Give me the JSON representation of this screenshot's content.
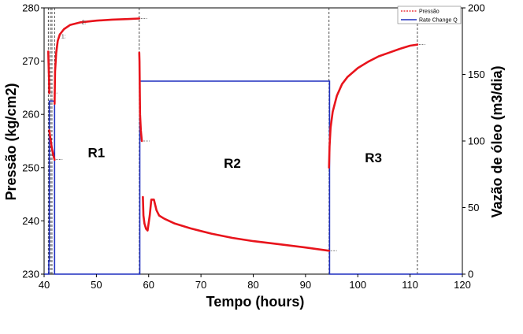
{
  "chart_data": {
    "type": "line",
    "xlabel": "Tempo (hours)",
    "ylabel_left": "Pressão (kg/cm2)",
    "ylabel_right": "Vazão de óleo (m3/dia)",
    "xlim": [
      40,
      120
    ],
    "ylim_left": [
      230,
      280
    ],
    "ylim_right": [
      0,
      200
    ],
    "x_ticks": [
      40,
      50,
      60,
      70,
      80,
      90,
      100,
      110,
      120
    ],
    "y_left_ticks": [
      230,
      240,
      250,
      260,
      270,
      280
    ],
    "y_right_ticks": [
      0,
      50,
      100,
      150,
      200
    ],
    "legend": {
      "placement": "top-right",
      "entries": [
        "Pressão",
        "Rate Change Q"
      ]
    },
    "colors": {
      "pressure": "#e8141c",
      "rate": "#1f2fbf",
      "guides": "#222222"
    },
    "series": [
      {
        "name": "Pressão",
        "axis": "left",
        "segments": [
          [
            [
              40.8,
              271.8
            ],
            [
              40.85,
              270
            ],
            [
              40.9,
              268
            ],
            [
              40.95,
              266.5
            ],
            [
              41.0,
              264
            ]
          ],
          [
            [
              41.0,
              257
            ],
            [
              41.2,
              255.5
            ],
            [
              41.5,
              253.5
            ],
            [
              41.8,
              252.2
            ],
            [
              42.0,
              251.5
            ]
          ],
          [
            [
              42.0,
              262
            ],
            [
              42.1,
              268
            ],
            [
              42.3,
              271.5
            ],
            [
              42.6,
              273.8
            ],
            [
              43.0,
              275
            ],
            [
              43.8,
              276
            ],
            [
              45,
              276.8
            ],
            [
              47,
              277.3
            ],
            [
              50,
              277.6
            ],
            [
              53,
              277.8
            ],
            [
              56,
              277.9
            ],
            [
              58.2,
              278
            ]
          ],
          [
            [
              58.2,
              271.6
            ],
            [
              58.25,
              270
            ],
            [
              58.3,
              264
            ],
            [
              58.35,
              260
            ],
            [
              58.5,
              257
            ],
            [
              58.7,
              255
            ]
          ],
          [
            [
              58.9,
              244.5
            ],
            [
              59.0,
              241
            ],
            [
              59.2,
              239.5
            ],
            [
              59.5,
              238.5
            ],
            [
              59.8,
              238.2
            ],
            [
              60.2,
              241
            ],
            [
              60.5,
              244
            ],
            [
              61.0,
              244
            ],
            [
              61.5,
              242
            ],
            [
              62,
              241
            ],
            [
              63,
              240.4
            ],
            [
              65,
              239.5
            ],
            [
              68,
              238.6
            ],
            [
              72,
              237.6
            ],
            [
              76,
              236.8
            ],
            [
              80,
              236.2
            ],
            [
              85,
              235.6
            ],
            [
              90,
              235
            ],
            [
              94.5,
              234.4
            ]
          ],
          [
            [
              94.5,
              250
            ],
            [
              94.6,
              254
            ],
            [
              94.8,
              257.5
            ],
            [
              95.2,
              260.5
            ],
            [
              96,
              263.5
            ],
            [
              97,
              265.7
            ],
            [
              98,
              267
            ],
            [
              100,
              268.7
            ],
            [
              102,
              269.9
            ],
            [
              104,
              270.9
            ],
            [
              106,
              271.6
            ],
            [
              108,
              272.3
            ],
            [
              110,
              272.9
            ],
            [
              111.4,
              273.1
            ]
          ]
        ]
      },
      {
        "name": "Rate Change Q",
        "axis": "right",
        "steps": [
          [
            40,
            0
          ],
          [
            40.9,
            0
          ],
          [
            40.9,
            10
          ],
          [
            41.0,
            10
          ],
          [
            41.0,
            130
          ],
          [
            42.0,
            130
          ],
          [
            42.0,
            0
          ],
          [
            58.3,
            0
          ],
          [
            58.3,
            145
          ],
          [
            94.6,
            145
          ],
          [
            94.6,
            0
          ],
          [
            120,
            0
          ]
        ]
      }
    ],
    "region_labels": [
      {
        "text": "R1",
        "x": 50,
        "y": 252
      },
      {
        "text": "R2",
        "x": 76,
        "y": 250
      },
      {
        "text": "R3",
        "x": 103,
        "y": 251
      }
    ],
    "vertical_guides": [
      40.8,
      41.2,
      41.5,
      42.0,
      58.2,
      94.5,
      111.4
    ],
    "point_labels": [
      {
        "text": "1:",
        "x": 43.3,
        "y": 274.3
      },
      {
        "text": "2:",
        "x": 47.2,
        "y": 277.0
      }
    ]
  }
}
